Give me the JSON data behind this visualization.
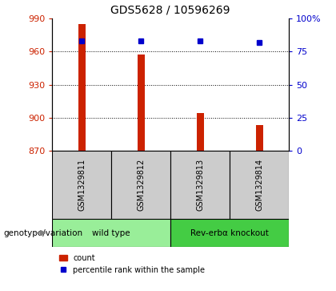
{
  "title": "GDS5628 / 10596269",
  "samples": [
    "GSM1329811",
    "GSM1329812",
    "GSM1329813",
    "GSM1329814"
  ],
  "counts": [
    985,
    957,
    904,
    893
  ],
  "percentile_ranks": [
    83,
    83,
    83,
    82
  ],
  "ylim_left": [
    870,
    990
  ],
  "ylim_right": [
    0,
    100
  ],
  "yticks_left": [
    870,
    900,
    930,
    960,
    990
  ],
  "yticks_right": [
    0,
    25,
    50,
    75,
    100
  ],
  "bar_color": "#cc2200",
  "dot_color": "#0000cc",
  "groups": [
    {
      "label": "wild type",
      "samples": [
        0,
        1
      ],
      "color": "#99ee99"
    },
    {
      "label": "Rev-erbα knockout",
      "samples": [
        2,
        3
      ],
      "color": "#44cc44"
    }
  ],
  "genotype_label": "genotype/variation",
  "legend_count_label": "count",
  "legend_pct_label": "percentile rank within the sample",
  "title_fontsize": 10,
  "tick_fontsize": 8,
  "bar_width": 0.12,
  "sample_box_color": "#cccccc",
  "group_box_color_1": "#99ee99",
  "group_box_color_2": "#44cc44"
}
